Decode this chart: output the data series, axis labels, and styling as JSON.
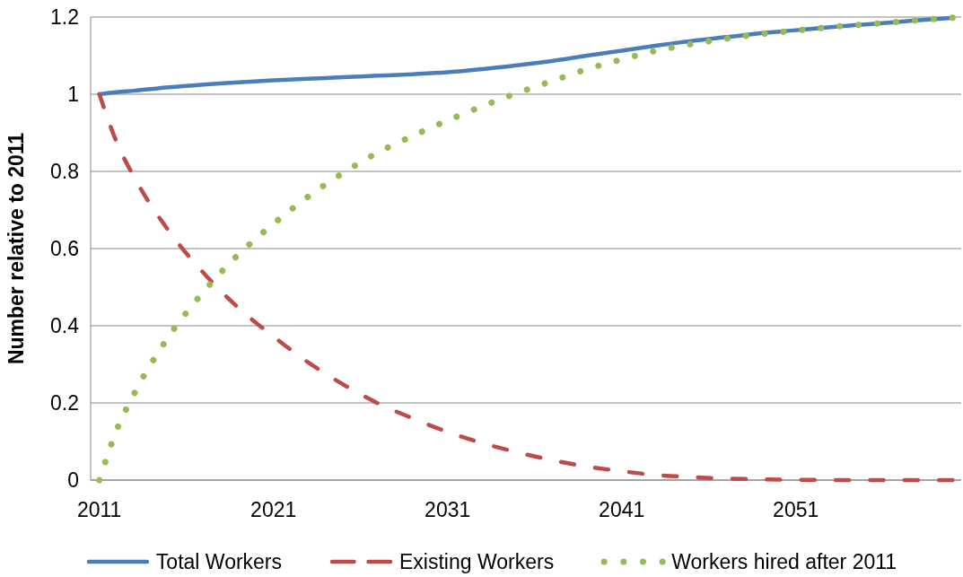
{
  "chart_data": {
    "type": "line",
    "ylabel": "Number relative to 2011",
    "x": [
      2011,
      2012,
      2013,
      2015,
      2017,
      2019,
      2021,
      2023,
      2025,
      2027,
      2029,
      2031,
      2033,
      2035,
      2037,
      2039,
      2041,
      2043,
      2045,
      2047,
      2049,
      2051,
      2053,
      2055,
      2057,
      2059,
      2060
    ],
    "xlim": [
      2010.5,
      2060.5
    ],
    "xticks": [
      2011,
      2021,
      2031,
      2041,
      2051
    ],
    "ylim": [
      0,
      1.2
    ],
    "yticks": [
      0,
      0.2,
      0.4,
      0.6,
      0.8,
      1,
      1.2
    ],
    "grid": "y",
    "legend": "bottom",
    "marker": "none",
    "series": [
      {
        "name": "Total Workers",
        "color": "#4a7ebb",
        "line_style": "solid",
        "values": [
          1.0,
          1.005,
          1.009,
          1.018,
          1.025,
          1.031,
          1.036,
          1.04,
          1.044,
          1.048,
          1.052,
          1.057,
          1.065,
          1.075,
          1.086,
          1.1,
          1.113,
          1.126,
          1.138,
          1.148,
          1.158,
          1.166,
          1.174,
          1.181,
          1.188,
          1.195,
          1.198
        ]
      },
      {
        "name": "Existing Workers",
        "color": "#be4b48",
        "line_style": "dashed",
        "values": [
          1.0,
          0.875,
          0.785,
          0.645,
          0.536,
          0.446,
          0.372,
          0.305,
          0.248,
          0.199,
          0.16,
          0.125,
          0.096,
          0.072,
          0.052,
          0.035,
          0.023,
          0.013,
          0.008,
          0.004,
          0.002,
          0.001,
          0,
          0,
          0,
          0,
          0
        ]
      },
      {
        "name": "Workers hired after 2011",
        "color": "#98b954",
        "line_style": "dotted",
        "values": [
          0,
          0.13,
          0.224,
          0.373,
          0.489,
          0.585,
          0.664,
          0.735,
          0.796,
          0.849,
          0.892,
          0.932,
          0.969,
          1.003,
          1.034,
          1.065,
          1.09,
          1.113,
          1.13,
          1.144,
          1.156,
          1.165,
          1.174,
          1.181,
          1.188,
          1.195,
          1.198
        ]
      }
    ]
  }
}
